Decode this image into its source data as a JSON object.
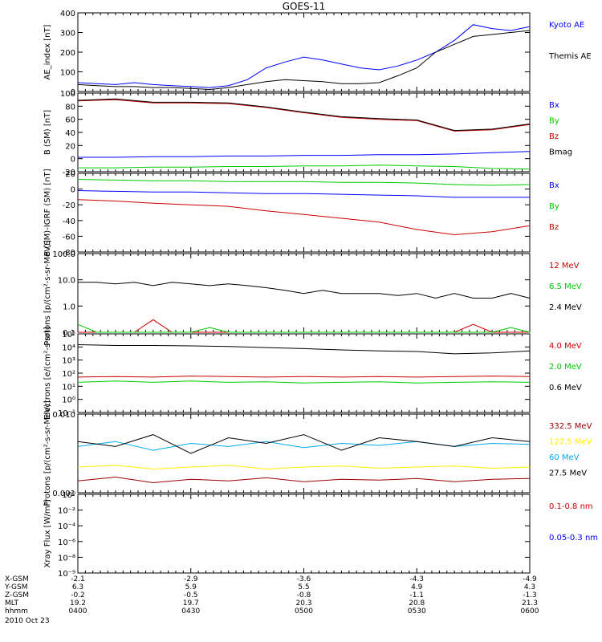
{
  "title": "GOES-11",
  "date_label": "2010 Oct 23",
  "colors": {
    "black": "#000000",
    "blue": "#0000ff",
    "green": "#00cc00",
    "red": "#cc0000",
    "darkred": "#990000",
    "yellow": "#ffee00",
    "cyan": "#00aaee",
    "bz_red": "#cc0000"
  },
  "x_ticks": [
    "0400",
    "0430",
    "0500",
    "0530",
    "0600"
  ],
  "ephemeris": {
    "labels": [
      "X-GSM",
      "Y-GSM",
      "Z-GSM",
      "MLT",
      "hhmm"
    ],
    "columns": [
      [
        "-2.1",
        "6.3",
        "-0.2",
        "19.2",
        "0400"
      ],
      [
        "-2.9",
        "5.9",
        "-0.5",
        "19.7",
        "0430"
      ],
      [
        "-3.6",
        "5.5",
        "-0.8",
        "20.3",
        "0500"
      ],
      [
        "-4.3",
        "4.9",
        "-1.1",
        "20.8",
        "0530"
      ],
      [
        "-4.9",
        "4.3",
        "-1.3",
        "21.3",
        "0600"
      ]
    ]
  },
  "chart_data": [
    {
      "type": "line",
      "ylabel": "AE_index [nT]",
      "ylim": [
        0,
        400
      ],
      "log": false,
      "y_ticks": [
        "0",
        "100",
        "200",
        "300",
        "400"
      ],
      "x": [
        0,
        5,
        10,
        15,
        20,
        25,
        30,
        35,
        40,
        45,
        50,
        55,
        60,
        65,
        70,
        75,
        80,
        85,
        90,
        95,
        100,
        105,
        110,
        115,
        120
      ],
      "series": [
        {
          "name": "Kyoto AE",
          "color": "#0000ff",
          "values": [
            45,
            40,
            35,
            45,
            35,
            30,
            25,
            20,
            30,
            60,
            120,
            150,
            175,
            160,
            140,
            120,
            110,
            130,
            160,
            200,
            260,
            340,
            320,
            310,
            330
          ]
        },
        {
          "name": "Themis AE",
          "color": "#000000",
          "values": [
            35,
            30,
            25,
            25,
            20,
            20,
            15,
            10,
            20,
            35,
            50,
            60,
            55,
            50,
            40,
            40,
            45,
            80,
            120,
            200,
            240,
            280,
            290,
            300,
            310
          ]
        }
      ]
    },
    {
      "type": "line",
      "ylabel": "B (SM) [nT]",
      "ylim": [
        -20,
        100
      ],
      "log": false,
      "y_ticks": [
        "-20",
        "0",
        "20",
        "40",
        "60",
        "80",
        "100"
      ],
      "x": [
        0,
        10,
        20,
        30,
        40,
        50,
        60,
        70,
        80,
        90,
        100,
        110,
        120
      ],
      "series": [
        {
          "name": "Bx",
          "color": "#0000ff",
          "values": [
            2,
            2,
            3,
            3,
            4,
            4,
            5,
            5,
            6,
            6,
            7,
            9,
            11
          ]
        },
        {
          "name": "By",
          "color": "#00cc00",
          "values": [
            -14,
            -14,
            -13,
            -13,
            -12,
            -12,
            -11,
            -11,
            -10,
            -11,
            -12,
            -15,
            -16
          ]
        },
        {
          "name": "Bz",
          "color": "#cc0000",
          "values": [
            88,
            90,
            85,
            85,
            84,
            78,
            70,
            63,
            60,
            58,
            42,
            44,
            52
          ]
        },
        {
          "name": "Bmag",
          "color": "#000000",
          "values": [
            89,
            91,
            86,
            86,
            85,
            79,
            71,
            64,
            61,
            59,
            43,
            45,
            53
          ]
        }
      ]
    },
    {
      "type": "line",
      "ylabel": "B (SM)-IGRF (SM) [nT]",
      "ylim": [
        -85,
        20
      ],
      "log": false,
      "y_ticks": [
        "-80",
        "-60",
        "-40",
        "-20",
        "0",
        "20"
      ],
      "x": [
        0,
        10,
        20,
        30,
        40,
        50,
        60,
        70,
        80,
        90,
        100,
        110,
        120
      ],
      "series": [
        {
          "name": "Bx",
          "color": "#0000ff",
          "values": [
            -3,
            -4,
            -5,
            -5,
            -6,
            -7,
            -7,
            -8,
            -9,
            -10,
            -12,
            -12,
            -12
          ]
        },
        {
          "name": "By",
          "color": "#00cc00",
          "values": [
            12,
            11,
            10,
            10,
            9,
            9,
            9,
            8,
            8,
            7,
            5,
            4,
            5
          ]
        },
        {
          "name": "Bz",
          "color": "#cc0000",
          "values": [
            -15,
            -17,
            -20,
            -22,
            -24,
            -30,
            -35,
            -40,
            -45,
            -55,
            -62,
            -58,
            -50
          ]
        }
      ]
    },
    {
      "type": "line",
      "ylabel": "Protons [p/(cm²-s-sr-MeV)]",
      "ylim": [
        0.1,
        100
      ],
      "log": true,
      "y_ticks": [
        "0.1",
        "1.0",
        "10.0",
        "100.0"
      ],
      "x": [
        0,
        5,
        10,
        15,
        20,
        25,
        30,
        35,
        40,
        45,
        50,
        55,
        60,
        65,
        70,
        75,
        80,
        85,
        90,
        95,
        100,
        105,
        110,
        115,
        120
      ],
      "series": [
        {
          "name": "12 MeV",
          "color": "#cc0000",
          "values": [
            0.1,
            0.1,
            0.1,
            0.1,
            0.3,
            0.1,
            0.1,
            0.1,
            0.1,
            0.1,
            0.1,
            0.1,
            0.1,
            0.1,
            0.1,
            0.1,
            0.1,
            0.1,
            0.1,
            0.1,
            0.1,
            0.2,
            0.1,
            0.1,
            0.1
          ]
        },
        {
          "name": "6.5 MeV",
          "color": "#00cc00",
          "values": [
            0.2,
            0.1,
            0.1,
            0.1,
            0.1,
            0.1,
            0.1,
            0.15,
            0.1,
            0.1,
            0.1,
            0.1,
            0.1,
            0.1,
            0.1,
            0.1,
            0.1,
            0.1,
            0.1,
            0.1,
            0.1,
            0.1,
            0.1,
            0.15,
            0.1
          ]
        },
        {
          "name": "2.4 MeV",
          "color": "#000000",
          "values": [
            8,
            8,
            7,
            8,
            6,
            8,
            7,
            6,
            7,
            6,
            5,
            4,
            3,
            4,
            3,
            3,
            3,
            2.5,
            3,
            2,
            3,
            2,
            2,
            3,
            2
          ]
        }
      ]
    },
    {
      "type": "line",
      "ylabel": "Electrons [e/(cm²-s-sr)]",
      "ylim": [
        0.1,
        100000
      ],
      "log": true,
      "y_ticks": [
        "10⁻¹",
        "10⁰",
        "10¹",
        "10²",
        "10³",
        "10⁴",
        "10⁵"
      ],
      "x": [
        0,
        10,
        20,
        30,
        40,
        50,
        60,
        70,
        80,
        90,
        100,
        110,
        120
      ],
      "series": [
        {
          "name": "4.0 MeV",
          "color": "#cc0000",
          "values": [
            50,
            55,
            50,
            60,
            55,
            50,
            55,
            50,
            55,
            50,
            55,
            60,
            55
          ]
        },
        {
          "name": "2.0 MeV",
          "color": "#00cc00",
          "values": [
            20,
            25,
            20,
            25,
            20,
            22,
            18,
            20,
            22,
            18,
            20,
            22,
            20
          ]
        },
        {
          "name": "0.6 MeV",
          "color": "#000000",
          "values": [
            15000,
            13000,
            13000,
            12000,
            11000,
            9000,
            7500,
            6000,
            5000,
            4500,
            3000,
            3500,
            5000
          ]
        }
      ]
    },
    {
      "type": "line",
      "ylabel": "Protons [p/(cm²-s-sr-MeV)]",
      "ylim": [
        0.001,
        0.1
      ],
      "log": true,
      "y_ticks": [
        "0.001",
        "0.010"
      ],
      "x": [
        0,
        10,
        20,
        30,
        40,
        50,
        60,
        70,
        80,
        90,
        100,
        110,
        120
      ],
      "series": [
        {
          "name": "332.5 MeV",
          "color": "#990000",
          "values": [
            0.002,
            0.0025,
            0.0018,
            0.0022,
            0.002,
            0.0024,
            0.0019,
            0.0022,
            0.0021,
            0.0023,
            0.0019,
            0.0022,
            0.0023
          ]
        },
        {
          "name": "122.5 MeV",
          "color": "#ffee00",
          "values": [
            0.0045,
            0.005,
            0.004,
            0.0045,
            0.005,
            0.004,
            0.0045,
            0.0048,
            0.0042,
            0.0045,
            0.0048,
            0.0042,
            0.0045
          ]
        },
        {
          "name": "60 MeV",
          "color": "#00aaee",
          "values": [
            0.015,
            0.02,
            0.012,
            0.018,
            0.015,
            0.02,
            0.014,
            0.018,
            0.016,
            0.02,
            0.015,
            0.018,
            0.017
          ]
        },
        {
          "name": "27.5 MeV",
          "color": "#000000",
          "values": [
            0.02,
            0.015,
            0.03,
            0.01,
            0.025,
            0.018,
            0.03,
            0.012,
            0.025,
            0.02,
            0.015,
            0.025,
            0.02
          ]
        }
      ]
    },
    {
      "type": "line",
      "ylabel": "Xray Flux [W/m²]",
      "ylim": [
        1e-09,
        1
      ],
      "log": true,
      "y_ticks": [
        "10⁻⁹",
        "10⁻⁸",
        "10⁻⁶",
        "10⁻⁴",
        "10⁻²",
        "10⁰"
      ],
      "x": [],
      "series": [
        {
          "name": "0.1-0.8 nm",
          "color": "#cc0000",
          "values": []
        },
        {
          "name": "0.05-0.3 nm",
          "color": "#0000ff",
          "values": []
        }
      ]
    }
  ]
}
